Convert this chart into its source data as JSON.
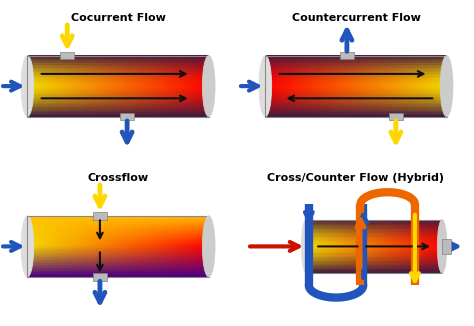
{
  "titles": [
    "Cocurrent Flow",
    "Countercurrent Flow",
    "Crossflow",
    "Cross/Counter Flow (Hybrid)"
  ],
  "title_fontsize": 8,
  "title_fontweight": "bold",
  "bg_color": "#ffffff",
  "arrow_yellow": "#FFD700",
  "arrow_blue": "#2255BB",
  "arrow_red": "#CC1100",
  "arrow_black": "#111111",
  "arrow_orange": "#EE6600",
  "cyl_left_color": "#FFD700",
  "cyl_right_color": "#CC0000",
  "cyl_edge_color": "#888888",
  "cap_color": "#CCCCCC"
}
